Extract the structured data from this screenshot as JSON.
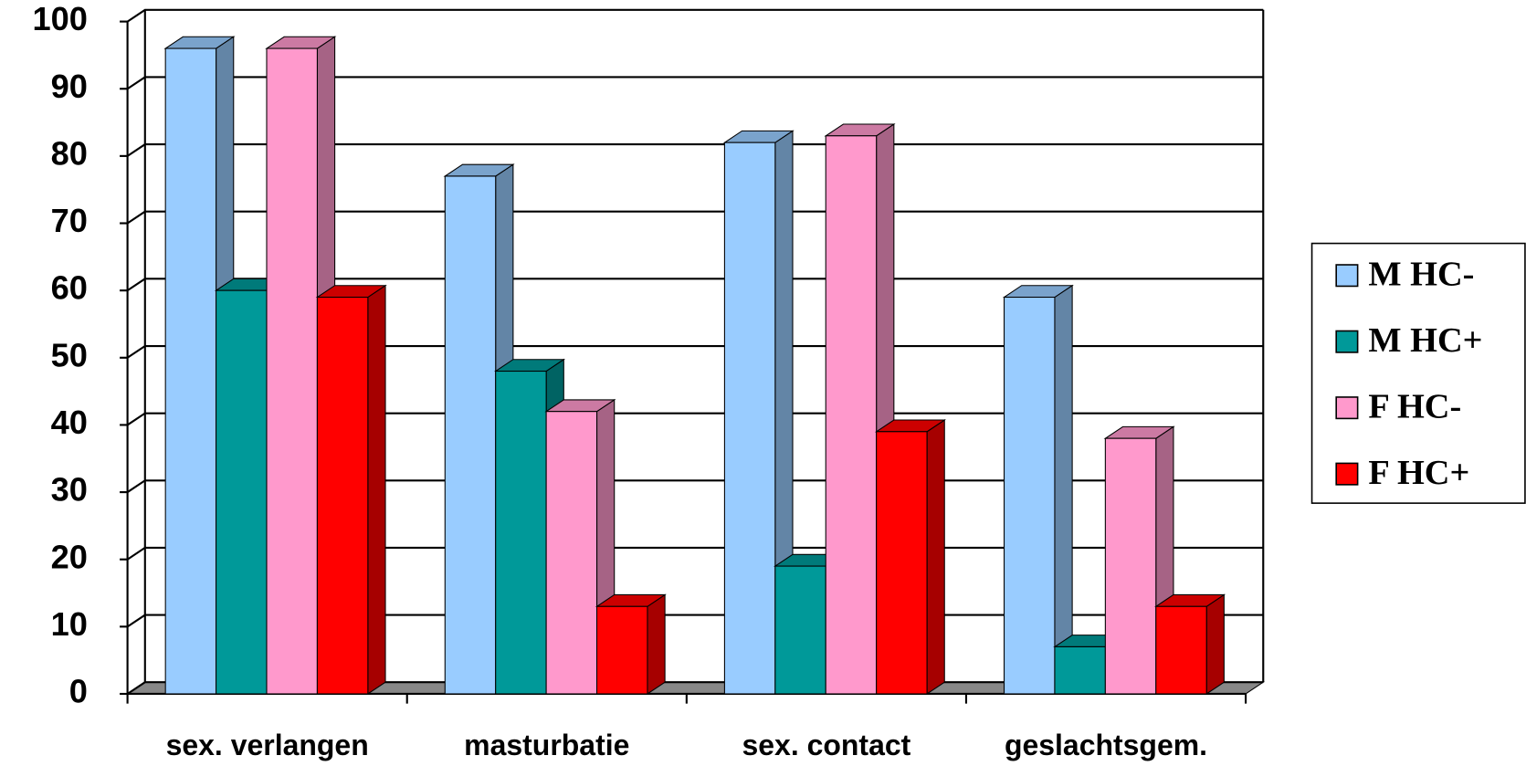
{
  "chart_data": {
    "type": "bar3d",
    "categories": [
      "sex. verlangen",
      "masturbatie",
      "sex. contact",
      "geslachtsgem."
    ],
    "series": [
      {
        "name": "M HC-",
        "color": "#99ccff",
        "values": [
          96,
          77,
          82,
          59
        ]
      },
      {
        "name": "M HC+",
        "color": "#009999",
        "values": [
          60,
          48,
          19,
          7
        ]
      },
      {
        "name": "F HC-",
        "color": "#ff99cc",
        "values": [
          96,
          42,
          83,
          38
        ]
      },
      {
        "name": "F HC+",
        "color": "#ff0000",
        "values": [
          59,
          13,
          39,
          13
        ]
      }
    ],
    "ylim": [
      0,
      100
    ],
    "yticks": [
      0,
      10,
      20,
      30,
      40,
      50,
      60,
      70,
      80,
      90,
      100
    ],
    "grid": true,
    "legend": "right"
  }
}
